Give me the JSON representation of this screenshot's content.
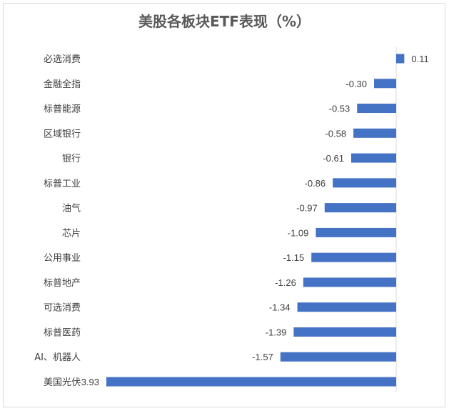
{
  "chart_data": {
    "type": "bar",
    "orientation": "horizontal",
    "title": "美股各板块ETF表现（%）",
    "categories": [
      "必选消费",
      "金融全指",
      "标普能源",
      "区域银行",
      "银行",
      "标普工业",
      "油气",
      "芯片",
      "公用事业",
      "标普地产",
      "可选消费",
      "标普医药",
      "AI、机器人",
      "美国光伏"
    ],
    "values": [
      0.11,
      -0.3,
      -0.53,
      -0.58,
      -0.61,
      -0.86,
      -0.97,
      -1.09,
      -1.15,
      -1.26,
      -1.34,
      -1.39,
      -1.57,
      -3.93
    ],
    "value_labels": [
      "0.11",
      "-0.30",
      "-0.53",
      "-0.58",
      "-0.61",
      "-0.86",
      "-0.97",
      "-1.09",
      "-1.15",
      "-1.26",
      "-1.34",
      "-1.39",
      "-1.57",
      "-3.93"
    ],
    "xlim": [
      -3.93,
      0.11
    ],
    "grid": false,
    "bar_color": "#4472c4",
    "axis_color": "#d9d9d9"
  }
}
